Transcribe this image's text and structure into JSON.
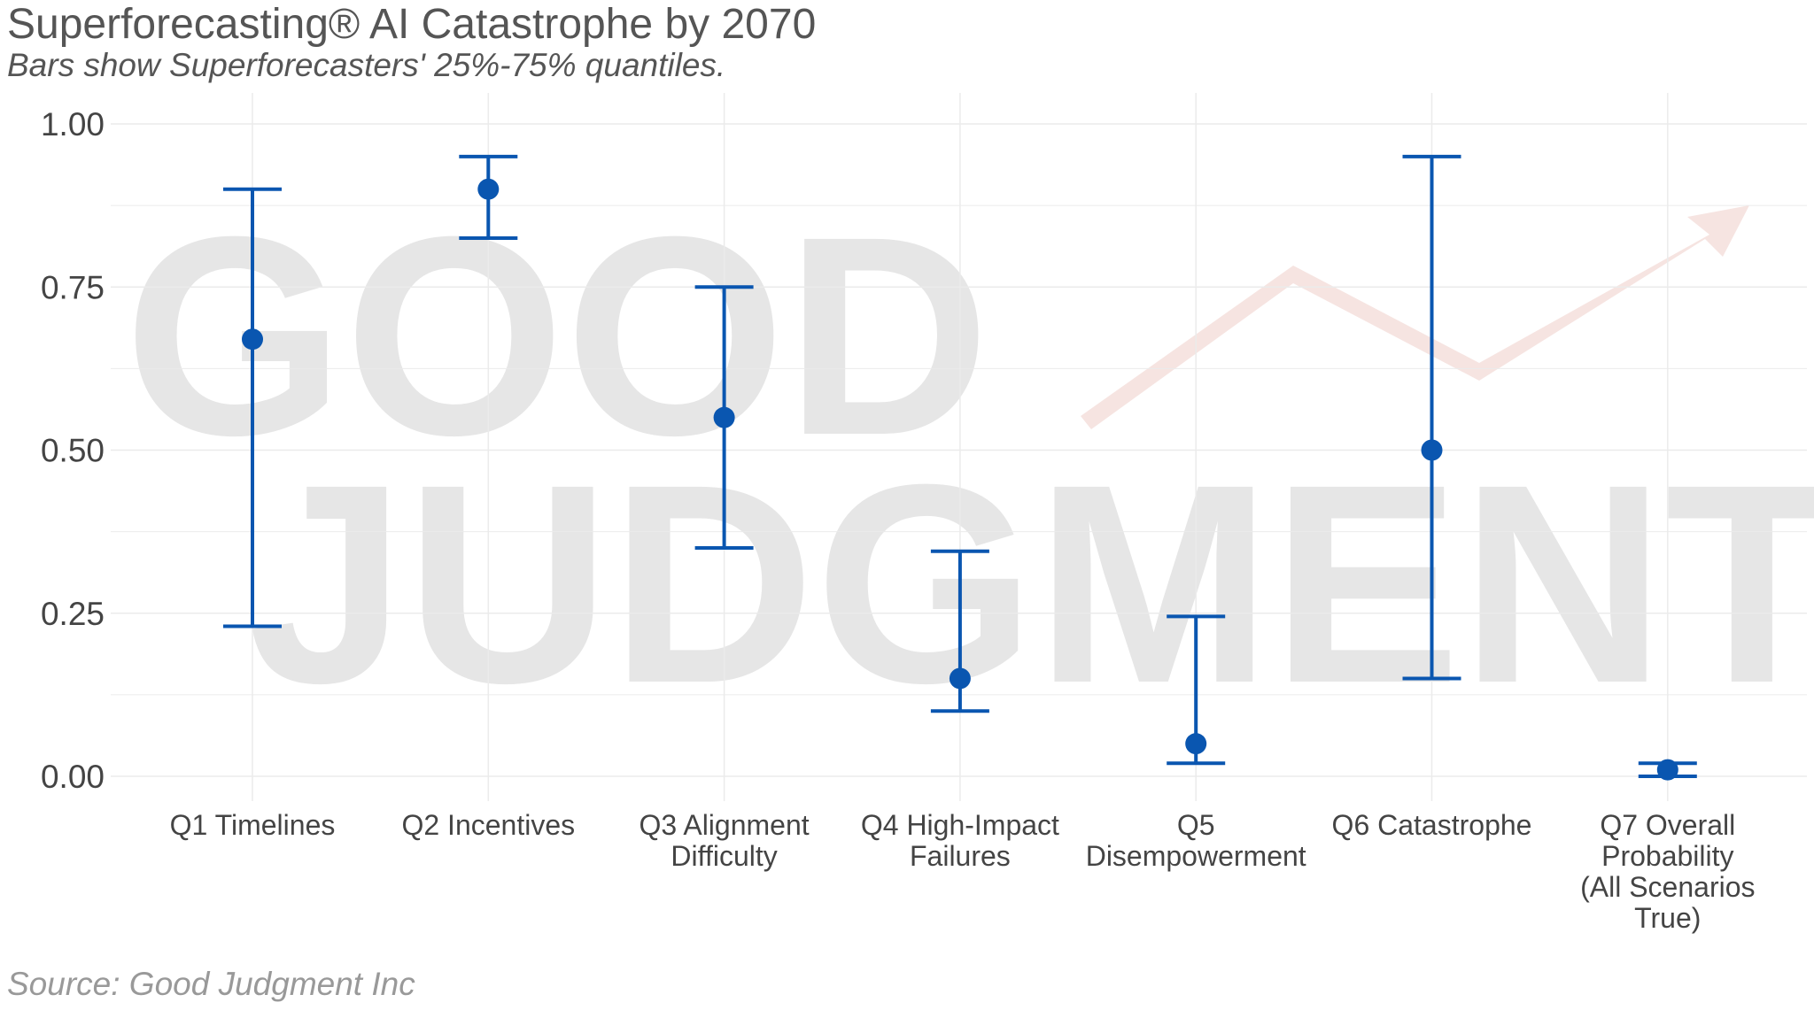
{
  "title": "Superforecasting® AI Catastrophe by 2070",
  "subtitle": "Bars show Superforecasters' 25%-75% quantiles.",
  "caption": "Source: Good Judgment Inc",
  "watermark": {
    "line1": "GOOD",
    "line2": "JUDGMENT"
  },
  "colors": {
    "marker": "#0a56b0",
    "grid": "#ebebeb",
    "text": "#444444",
    "arrow": "#f6e4e1"
  },
  "chart_data": {
    "type": "scatter",
    "y_ticks": [
      "0.00",
      "0.25",
      "0.50",
      "0.75",
      "1.00"
    ],
    "ylim": [
      0,
      1
    ],
    "grid": true,
    "categories": [
      {
        "label": [
          "Q1 Timelines"
        ],
        "median": 0.67,
        "q25": 0.23,
        "q75": 0.9
      },
      {
        "label": [
          "Q2 Incentives"
        ],
        "median": 0.9,
        "q25": 0.825,
        "q75": 0.95
      },
      {
        "label": [
          "Q3 Alignment",
          "Difficulty"
        ],
        "median": 0.55,
        "q25": 0.35,
        "q75": 0.75
      },
      {
        "label": [
          "Q4 High-Impact",
          "Failures"
        ],
        "median": 0.15,
        "q25": 0.1,
        "q75": 0.345
      },
      {
        "label": [
          "Q5",
          "Disempowerment"
        ],
        "median": 0.05,
        "q25": 0.02,
        "q75": 0.245
      },
      {
        "label": [
          "Q6 Catastrophe"
        ],
        "median": 0.5,
        "q25": 0.15,
        "q75": 0.95
      },
      {
        "label": [
          "Q7 Overall",
          "Probability",
          "(All Scenarios",
          "True)"
        ],
        "median": 0.01,
        "q25": 0.0,
        "q75": 0.02
      }
    ]
  }
}
